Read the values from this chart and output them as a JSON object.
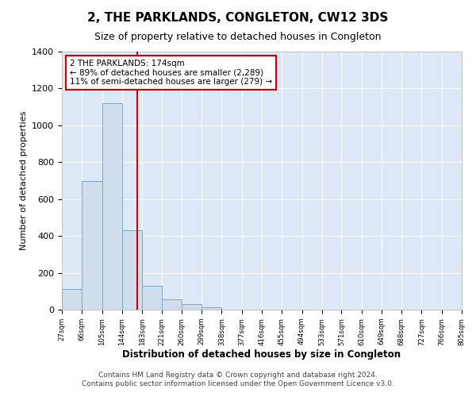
{
  "title": "2, THE PARKLANDS, CONGLETON, CW12 3DS",
  "subtitle": "Size of property relative to detached houses in Congleton",
  "xlabel": "Distribution of detached houses by size in Congleton",
  "ylabel": "Number of detached properties",
  "bin_edges": [
    27,
    66,
    105,
    144,
    183,
    221,
    260,
    299,
    338,
    377,
    416,
    455,
    494,
    533,
    571,
    610,
    649,
    688,
    727,
    766,
    805
  ],
  "bin_counts": [
    110,
    700,
    1120,
    430,
    130,
    55,
    30,
    15,
    0,
    0,
    0,
    0,
    0,
    0,
    0,
    0,
    0,
    0,
    0,
    0
  ],
  "bar_color": "#cfdded",
  "bar_edge_color": "#7aaac8",
  "vline_x": 174,
  "vline_color": "#cc0000",
  "annotation_title": "2 THE PARKLANDS: 174sqm",
  "annotation_line1": "← 89% of detached houses are smaller (2,289)",
  "annotation_line2": "11% of semi-detached houses are larger (279) →",
  "annotation_box_color": "#ffffff",
  "annotation_box_edge_color": "#cc0000",
  "ylim": [
    0,
    1400
  ],
  "yticks": [
    0,
    200,
    400,
    600,
    800,
    1000,
    1200,
    1400
  ],
  "tick_labels": [
    "27sqm",
    "66sqm",
    "105sqm",
    "144sqm",
    "183sqm",
    "221sqm",
    "260sqm",
    "299sqm",
    "338sqm",
    "377sqm",
    "416sqm",
    "455sqm",
    "494sqm",
    "533sqm",
    "571sqm",
    "610sqm",
    "649sqm",
    "688sqm",
    "727sqm",
    "766sqm",
    "805sqm"
  ],
  "footer_line1": "Contains HM Land Registry data © Crown copyright and database right 2024.",
  "footer_line2": "Contains public sector information licensed under the Open Government Licence v3.0.",
  "background_color": "#ffffff",
  "plot_background_color": "#dce8f5",
  "grid_color": "#ffffff",
  "title_fontsize": 11,
  "subtitle_fontsize": 9,
  "footer_fontsize": 6.5
}
